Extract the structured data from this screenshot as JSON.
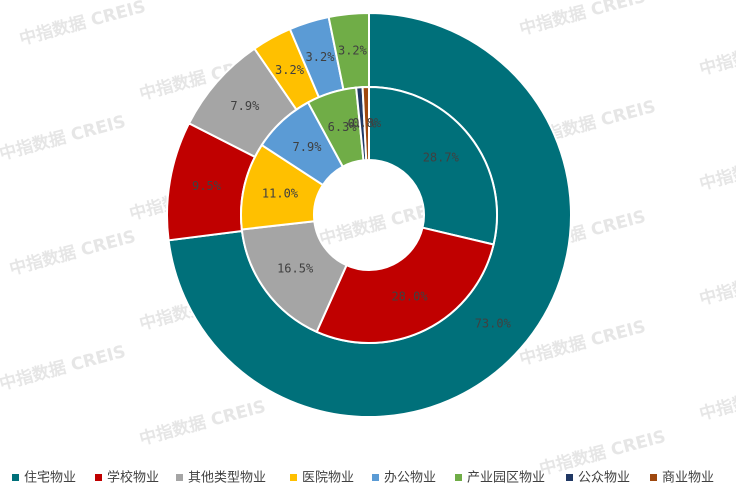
{
  "chart_data": {
    "type": "double-donut",
    "categories": [
      "住宅物业",
      "学校物业",
      "其他类型物业",
      "医院物业",
      "办公物业",
      "产业园区物业",
      "公众物业",
      "商业物业"
    ],
    "colors": [
      "#00707a",
      "#c00000",
      "#a5a5a5",
      "#ffc000",
      "#5b9bd5",
      "#70ad47",
      "#203864",
      "#9e480e"
    ],
    "rings": [
      {
        "values": [
          73.0,
          9.5,
          7.9,
          3.2,
          3.2,
          3.2,
          null,
          null
        ],
        "value_labels": [
          "73.0%",
          "9.5%",
          "7.9%",
          "3.2%",
          "3.2%",
          "3.2%",
          null,
          null
        ]
      },
      {
        "values": [
          28.7,
          28.0,
          16.5,
          11.0,
          7.9,
          6.3,
          0.8,
          0.8
        ],
        "value_labels": [
          "28.7%",
          "28.0%",
          "16.5%",
          "11.0%",
          "7.9%",
          "6.3%",
          "0.8%",
          "0.8%"
        ]
      }
    ],
    "watermark": "中指数据 CREIS"
  }
}
